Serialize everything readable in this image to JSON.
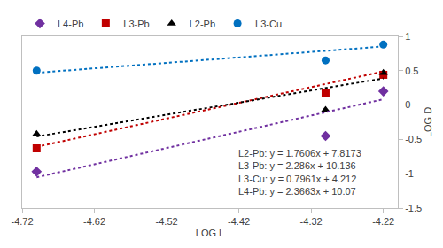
{
  "chart_data": {
    "type": "scatter",
    "x_label": "LOG L",
    "y_label": "LOG D",
    "xlim": [
      -4.72,
      -4.2
    ],
    "xticks": [
      -4.72,
      -4.62,
      -4.52,
      -4.42,
      -4.32,
      -4.22
    ],
    "ylim": [
      -1.5,
      1
    ],
    "yticks": [
      -1.5,
      -1,
      -0.5,
      0,
      0.5,
      1
    ],
    "grid": false,
    "legend": "top-left",
    "series": [
      {
        "name": "L4-Pb",
        "color": "#7030a0",
        "marker": "diamond",
        "x": [
          -4.7,
          -4.3,
          -4.22
        ],
        "values": [
          -0.97,
          -0.45,
          0.2
        ],
        "fit": {
          "slope": 2.3663,
          "intercept": 10.07
        }
      },
      {
        "name": "L3-Pb",
        "color": "#c00000",
        "marker": "square",
        "x": [
          -4.7,
          -4.3,
          -4.22
        ],
        "values": [
          -0.63,
          0.17,
          0.44
        ],
        "fit": {
          "slope": 2.286,
          "intercept": 10.136
        }
      },
      {
        "name": "L2-Pb",
        "color": "#000000",
        "marker": "triangle-up",
        "x": [
          -4.7,
          -4.3,
          -4.22
        ],
        "values": [
          -0.42,
          -0.07,
          0.47
        ],
        "fit": {
          "slope": 1.7606,
          "intercept": 7.8173
        }
      },
      {
        "name": "L3-Cu",
        "color": "#0070c0",
        "marker": "circle",
        "x": [
          -4.7,
          -4.3,
          -4.22
        ],
        "values": [
          0.5,
          0.65,
          0.88
        ],
        "fit": {
          "slope": 0.7961,
          "intercept": 4.212
        }
      }
    ],
    "line_style": "dot",
    "annotations": [
      "L2-Pb: y = 1.7606x + 7.8173",
      "L3-Pb: y = 2.286x + 10.136",
      "L3-Cu: y = 0.7961x + 4.212",
      "L4-Pb: y = 2.3663x + 10.07"
    ]
  }
}
